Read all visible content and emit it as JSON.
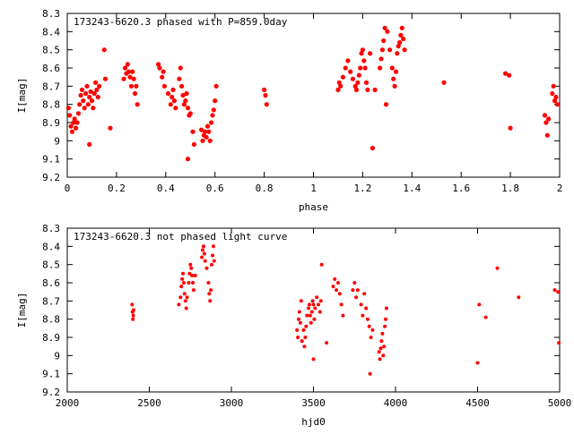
{
  "chart_data": [
    {
      "type": "scatter",
      "title": "173243-6620.3 phased with P=859.0day",
      "xlabel": "phase",
      "ylabel": "I[mag]",
      "xlim": [
        0,
        2
      ],
      "ylim": [
        9.2,
        8.3
      ],
      "y_inverted": true,
      "grid": false,
      "marker_color": "#ff0000",
      "x_ticks": [
        0,
        0.2,
        0.4,
        0.6,
        0.8,
        1,
        1.2,
        1.4,
        1.6,
        1.8,
        2
      ],
      "x_tick_labels": [
        "0",
        "0.2",
        "0.4",
        "0.6",
        "0.8",
        "1",
        "1.2",
        "1.4",
        "1.6",
        "1.8",
        "2"
      ],
      "y_ticks": [
        8.3,
        8.4,
        8.5,
        8.6,
        8.7,
        8.8,
        8.9,
        9.0,
        9.1,
        9.2
      ],
      "y_tick_labels": [
        "8.3",
        "8.4",
        "8.5",
        "8.6",
        "8.7",
        "8.8",
        "8.9",
        "9",
        "9.1",
        "9.2"
      ],
      "points": [
        [
          0.005,
          8.82
        ],
        [
          0.01,
          8.86
        ],
        [
          0.015,
          8.92
        ],
        [
          0.02,
          8.95
        ],
        [
          0.025,
          8.9
        ],
        [
          0.03,
          8.88
        ],
        [
          0.035,
          8.93
        ],
        [
          0.04,
          8.9
        ],
        [
          0.045,
          8.85
        ],
        [
          0.05,
          8.8
        ],
        [
          0.055,
          8.75
        ],
        [
          0.06,
          8.72
        ],
        [
          0.065,
          8.78
        ],
        [
          0.07,
          8.82
        ],
        [
          0.075,
          8.74
        ],
        [
          0.08,
          8.7
        ],
        [
          0.085,
          8.8
        ],
        [
          0.09,
          8.76
        ],
        [
          0.095,
          8.73
        ],
        [
          0.1,
          8.78
        ],
        [
          0.105,
          8.82
        ],
        [
          0.11,
          8.74
        ],
        [
          0.115,
          8.68
        ],
        [
          0.12,
          8.72
        ],
        [
          0.125,
          8.76
        ],
        [
          0.13,
          8.7
        ],
        [
          0.09,
          9.02
        ],
        [
          0.15,
          8.5
        ],
        [
          0.155,
          8.66
        ],
        [
          0.175,
          8.93
        ],
        [
          0.23,
          8.66
        ],
        [
          0.235,
          8.6
        ],
        [
          0.24,
          8.63
        ],
        [
          0.245,
          8.58
        ],
        [
          0.25,
          8.62
        ],
        [
          0.255,
          8.65
        ],
        [
          0.26,
          8.7
        ],
        [
          0.265,
          8.62
        ],
        [
          0.27,
          8.66
        ],
        [
          0.275,
          8.74
        ],
        [
          0.28,
          8.7
        ],
        [
          0.285,
          8.8
        ],
        [
          0.37,
          8.58
        ],
        [
          0.375,
          8.6
        ],
        [
          0.385,
          8.65
        ],
        [
          0.39,
          8.62
        ],
        [
          0.395,
          8.7
        ],
        [
          0.41,
          8.74
        ],
        [
          0.42,
          8.8
        ],
        [
          0.425,
          8.76
        ],
        [
          0.43,
          8.72
        ],
        [
          0.435,
          8.78
        ],
        [
          0.44,
          8.82
        ],
        [
          0.455,
          8.66
        ],
        [
          0.46,
          8.6
        ],
        [
          0.465,
          8.7
        ],
        [
          0.47,
          8.75
        ],
        [
          0.475,
          8.8
        ],
        [
          0.48,
          8.78
        ],
        [
          0.485,
          8.74
        ],
        [
          0.49,
          8.82
        ],
        [
          0.495,
          8.86
        ],
        [
          0.5,
          8.85
        ],
        [
          0.51,
          8.95
        ],
        [
          0.545,
          8.94
        ],
        [
          0.55,
          9.0
        ],
        [
          0.555,
          8.97
        ],
        [
          0.56,
          8.95
        ],
        [
          0.565,
          8.98
        ],
        [
          0.57,
          8.92
        ],
        [
          0.575,
          8.95
        ],
        [
          0.58,
          9.0
        ],
        [
          0.585,
          8.9
        ],
        [
          0.59,
          8.86
        ],
        [
          0.595,
          8.83
        ],
        [
          0.6,
          8.78
        ],
        [
          0.605,
          8.7
        ],
        [
          0.49,
          9.1
        ],
        [
          0.515,
          9.02
        ],
        [
          0.8,
          8.72
        ],
        [
          0.805,
          8.75
        ],
        [
          0.81,
          8.8
        ],
        [
          1.1,
          8.72
        ],
        [
          1.105,
          8.68
        ],
        [
          1.11,
          8.7
        ],
        [
          1.12,
          8.65
        ],
        [
          1.13,
          8.6
        ],
        [
          1.14,
          8.56
        ],
        [
          1.15,
          8.62
        ],
        [
          1.16,
          8.66
        ],
        [
          1.17,
          8.7
        ],
        [
          1.175,
          8.72
        ],
        [
          1.18,
          8.68
        ],
        [
          1.185,
          8.64
        ],
        [
          1.19,
          8.6
        ],
        [
          1.195,
          8.52
        ],
        [
          1.2,
          8.5
        ],
        [
          1.205,
          8.56
        ],
        [
          1.21,
          8.6
        ],
        [
          1.215,
          8.68
        ],
        [
          1.22,
          8.72
        ],
        [
          1.23,
          8.52
        ],
        [
          1.24,
          9.04
        ],
        [
          1.25,
          8.72
        ],
        [
          1.27,
          8.6
        ],
        [
          1.275,
          8.55
        ],
        [
          1.28,
          8.5
        ],
        [
          1.285,
          8.45
        ],
        [
          1.29,
          8.38
        ],
        [
          1.295,
          8.8
        ],
        [
          1.3,
          8.4
        ],
        [
          1.31,
          8.5
        ],
        [
          1.32,
          8.6
        ],
        [
          1.325,
          8.66
        ],
        [
          1.33,
          8.7
        ],
        [
          1.335,
          8.62
        ],
        [
          1.34,
          8.52
        ],
        [
          1.345,
          8.48
        ],
        [
          1.35,
          8.46
        ],
        [
          1.355,
          8.42
        ],
        [
          1.36,
          8.38
        ],
        [
          1.365,
          8.44
        ],
        [
          1.37,
          8.5
        ],
        [
          1.53,
          8.68
        ],
        [
          1.78,
          8.63
        ],
        [
          1.795,
          8.64
        ],
        [
          1.8,
          8.93
        ],
        [
          1.94,
          8.86
        ],
        [
          1.945,
          8.9
        ],
        [
          1.95,
          8.97
        ],
        [
          1.955,
          8.88
        ],
        [
          1.97,
          8.74
        ],
        [
          1.975,
          8.7
        ],
        [
          1.98,
          8.78
        ],
        [
          1.985,
          8.76
        ],
        [
          1.99,
          8.8
        ]
      ]
    },
    {
      "type": "scatter",
      "title": "173243-6620.3 not phased light curve",
      "xlabel": "hjd0",
      "ylabel": "I[mag]",
      "xlim": [
        2000,
        5000
      ],
      "ylim": [
        9.2,
        8.3
      ],
      "y_inverted": true,
      "grid": false,
      "marker_color": "#ff0000",
      "x_ticks": [
        2000,
        2500,
        3000,
        3500,
        4000,
        4500,
        5000
      ],
      "x_tick_labels": [
        "2000",
        "2500",
        "3000",
        "3500",
        "4000",
        "4500",
        "5000"
      ],
      "y_ticks": [
        8.3,
        8.4,
        8.5,
        8.6,
        8.7,
        8.8,
        8.9,
        9.0,
        9.1,
        9.2
      ],
      "y_tick_labels": [
        "8.3",
        "8.4",
        "8.5",
        "8.6",
        "8.7",
        "8.8",
        "8.9",
        "9",
        "9.1",
        "9.2"
      ],
      "points": [
        [
          2395,
          8.72
        ],
        [
          2398,
          8.76
        ],
        [
          2400,
          8.8
        ],
        [
          2402,
          8.78
        ],
        [
          2404,
          8.75
        ],
        [
          2680,
          8.72
        ],
        [
          2690,
          8.68
        ],
        [
          2695,
          8.62
        ],
        [
          2700,
          8.58
        ],
        [
          2705,
          8.55
        ],
        [
          2710,
          8.6
        ],
        [
          2715,
          8.66
        ],
        [
          2720,
          8.7
        ],
        [
          2725,
          8.74
        ],
        [
          2730,
          8.68
        ],
        [
          2740,
          8.6
        ],
        [
          2745,
          8.55
        ],
        [
          2750,
          8.5
        ],
        [
          2755,
          8.52
        ],
        [
          2760,
          8.56
        ],
        [
          2765,
          8.6
        ],
        [
          2770,
          8.64
        ],
        [
          2780,
          8.56
        ],
        [
          2820,
          8.46
        ],
        [
          2825,
          8.42
        ],
        [
          2830,
          8.4
        ],
        [
          2835,
          8.44
        ],
        [
          2840,
          8.48
        ],
        [
          2850,
          8.52
        ],
        [
          2860,
          8.6
        ],
        [
          2865,
          8.66
        ],
        [
          2870,
          8.7
        ],
        [
          2875,
          8.64
        ],
        [
          2880,
          8.5
        ],
        [
          2885,
          8.45
        ],
        [
          2890,
          8.4
        ],
        [
          2895,
          8.48
        ],
        [
          3400,
          8.86
        ],
        [
          3405,
          8.9
        ],
        [
          3410,
          8.8
        ],
        [
          3415,
          8.76
        ],
        [
          3420,
          8.82
        ],
        [
          3425,
          8.7
        ],
        [
          3430,
          8.92
        ],
        [
          3440,
          8.86
        ],
        [
          3445,
          8.95
        ],
        [
          3450,
          8.9
        ],
        [
          3455,
          8.84
        ],
        [
          3460,
          8.78
        ],
        [
          3470,
          8.74
        ],
        [
          3475,
          8.72
        ],
        [
          3480,
          8.78
        ],
        [
          3485,
          8.82
        ],
        [
          3490,
          8.76
        ],
        [
          3495,
          8.7
        ],
        [
          3500,
          8.72
        ],
        [
          3505,
          8.8
        ],
        [
          3510,
          8.74
        ],
        [
          3520,
          8.68
        ],
        [
          3530,
          8.72
        ],
        [
          3540,
          8.76
        ],
        [
          3545,
          8.7
        ],
        [
          3550,
          8.5
        ],
        [
          3580,
          8.93
        ],
        [
          3620,
          8.62
        ],
        [
          3630,
          8.58
        ],
        [
          3640,
          8.64
        ],
        [
          3650,
          8.6
        ],
        [
          3660,
          8.66
        ],
        [
          3670,
          8.72
        ],
        [
          3680,
          8.78
        ],
        [
          3500,
          9.02
        ],
        [
          3740,
          8.64
        ],
        [
          3750,
          8.6
        ],
        [
          3760,
          8.68
        ],
        [
          3770,
          8.64
        ],
        [
          3790,
          8.72
        ],
        [
          3800,
          8.78
        ],
        [
          3810,
          8.66
        ],
        [
          3820,
          8.74
        ],
        [
          3830,
          8.8
        ],
        [
          3840,
          8.84
        ],
        [
          3850,
          8.9
        ],
        [
          3860,
          8.86
        ],
        [
          3845,
          9.1
        ],
        [
          3900,
          8.98
        ],
        [
          3905,
          9.02
        ],
        [
          3910,
          8.96
        ],
        [
          3915,
          8.92
        ],
        [
          3920,
          8.88
        ],
        [
          3925,
          9.0
        ],
        [
          3930,
          8.95
        ],
        [
          3935,
          8.84
        ],
        [
          3940,
          8.8
        ],
        [
          3945,
          8.74
        ],
        [
          4500,
          9.04
        ],
        [
          4510,
          8.72
        ],
        [
          4550,
          8.79
        ],
        [
          4620,
          8.52
        ],
        [
          4750,
          8.68
        ],
        [
          4970,
          8.64
        ],
        [
          4990,
          8.65
        ],
        [
          4995,
          8.93
        ]
      ]
    }
  ]
}
